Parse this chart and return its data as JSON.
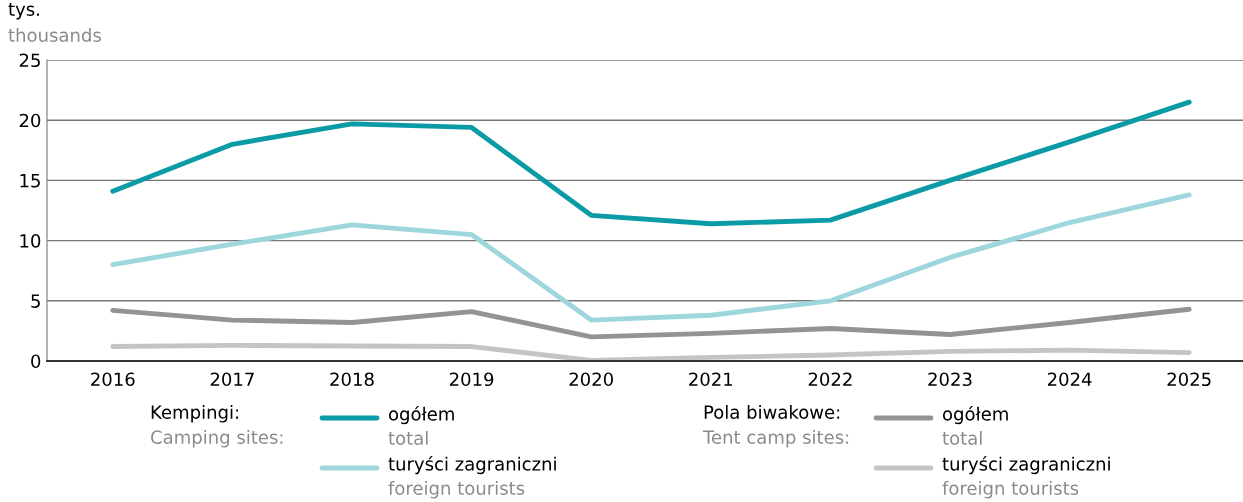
{
  "chart_data": {
    "type": "line",
    "ylabel": "tys.\nthousands",
    "categories": [
      "2016",
      "2017",
      "2018",
      "2019",
      "2020",
      "2021",
      "2022",
      "2023",
      "2024",
      "2025"
    ],
    "series": [
      {
        "name": "ogółem\ntotal",
        "color": "#0a9ba6",
        "values": [
          14.1,
          18.0,
          19.7,
          19.4,
          12.1,
          11.4,
          11.7,
          15.0,
          18.2,
          21.5
        ]
      },
      {
        "name": "turyści zagraniczni\nforeign tourists",
        "color": "#9dd6dc",
        "values": [
          8.0,
          9.7,
          11.3,
          10.5,
          3.4,
          3.8,
          5.0,
          8.6,
          11.5,
          13.8
        ]
      },
      {
        "name": "ogółem\ntotal",
        "color": "#939393",
        "values": [
          4.2,
          3.4,
          3.2,
          4.1,
          2.0,
          2.3,
          2.7,
          2.2,
          3.2,
          4.3
        ]
      },
      {
        "name": "turyści zagraniczni\nforeign tourists",
        "color": "#c4c4c4",
        "values": [
          1.2,
          1.3,
          1.25,
          1.2,
          0.05,
          0.3,
          0.5,
          0.8,
          0.9,
          0.7
        ]
      }
    ],
    "annotations": [
      "Kempingi:\nCamping sites:",
      "Pola biwakowe:\nTent camp sites:"
    ],
    "ylim": [
      0,
      25
    ],
    "yticks": [
      0,
      5,
      10,
      15,
      20,
      25
    ],
    "grid": "y",
    "legend": "bottom",
    "marker": "none",
    "line_style": "solid"
  }
}
